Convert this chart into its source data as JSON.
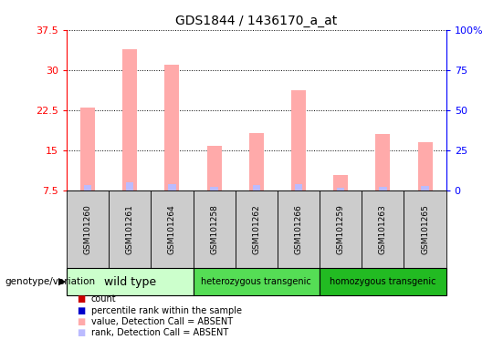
{
  "title": "GDS1844 / 1436170_a_at",
  "samples": [
    "GSM101260",
    "GSM101261",
    "GSM101264",
    "GSM101258",
    "GSM101262",
    "GSM101266",
    "GSM101259",
    "GSM101263",
    "GSM101265"
  ],
  "groups": [
    {
      "name": "wild type",
      "indices": [
        0,
        1,
        2
      ],
      "color": "#bbffbb"
    },
    {
      "name": "heterozygous transgenic",
      "indices": [
        3,
        4,
        5
      ],
      "color": "#55ee55"
    },
    {
      "name": "homozygous transgenic",
      "indices": [
        6,
        7,
        8
      ],
      "color": "#33cc33"
    }
  ],
  "count_values": [
    23.0,
    33.8,
    31.0,
    15.8,
    18.2,
    26.2,
    10.5,
    18.0,
    16.5
  ],
  "rank_values": [
    8.6,
    9.0,
    8.8,
    8.3,
    8.5,
    8.7,
    8.1,
    8.3,
    8.4
  ],
  "ylim_left": [
    7.5,
    37.5
  ],
  "ylim_right": [
    0,
    100
  ],
  "yticks_left": [
    7.5,
    15.0,
    22.5,
    30.0,
    37.5
  ],
  "yticks_right": [
    0,
    25,
    50,
    75,
    100
  ],
  "ytick_labels_left": [
    "7.5",
    "15",
    "22.5",
    "30",
    "37.5"
  ],
  "ytick_labels_right": [
    "0",
    "25",
    "50",
    "75",
    "100%"
  ],
  "bar_width": 0.35,
  "rank_bar_width": 0.18,
  "count_bar_color_absent": "#ffaaaa",
  "rank_bar_color_absent": "#bbbbff",
  "count_bar_color": "#cc0000",
  "rank_bar_color": "#0000cc",
  "label_area_color": "#cccccc",
  "genotype_label": "genotype/variation",
  "legend_items": [
    {
      "color": "#cc0000",
      "label": "count"
    },
    {
      "color": "#0000cc",
      "label": "percentile rank within the sample"
    },
    {
      "color": "#ffaaaa",
      "label": "value, Detection Call = ABSENT"
    },
    {
      "color": "#bbbbff",
      "label": "rank, Detection Call = ABSENT"
    }
  ]
}
